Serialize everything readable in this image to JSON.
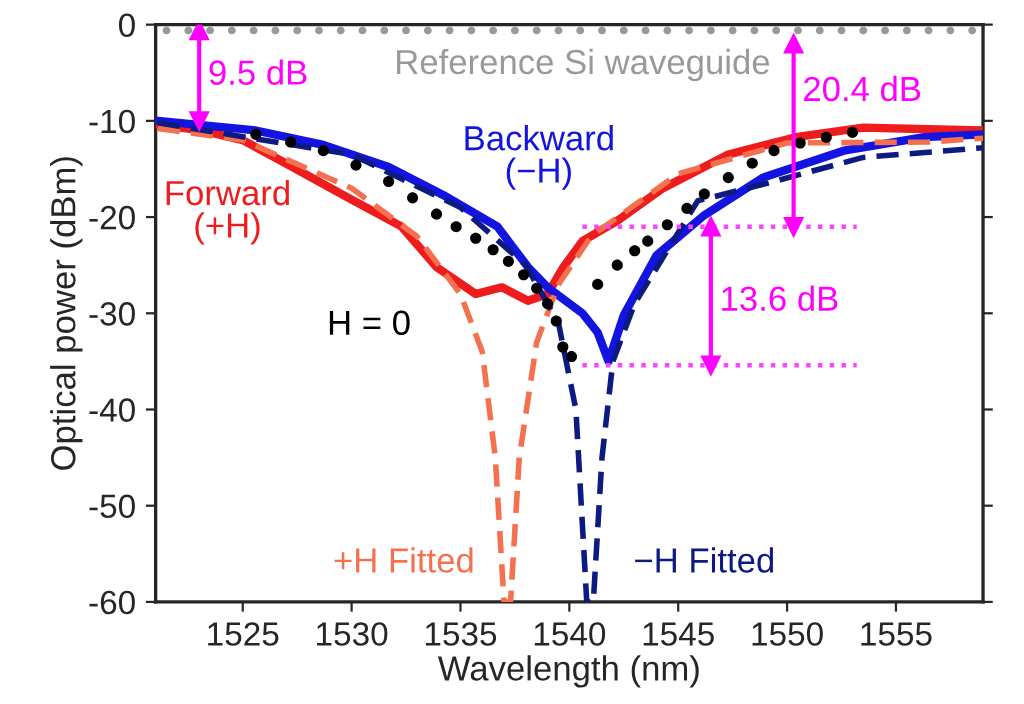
{
  "chart_data": {
    "type": "line",
    "xlabel": "Wavelength (nm)",
    "ylabel": "Optical power (dBm)",
    "xlim": [
      1521,
      1559
    ],
    "xticks": [
      1525,
      1530,
      1535,
      1540,
      1545,
      1550,
      1555
    ],
    "ylim": [
      -60,
      0
    ],
    "yticks": [
      -60,
      -50,
      -40,
      -30,
      -20,
      -10,
      0
    ],
    "grid": false,
    "legend": false,
    "series": [
      {
        "name": "Reference Si waveguide",
        "type": "scatter",
        "marker": "circle",
        "color": "#999999",
        "x": [
          1521.5,
          1522.5,
          1523.5,
          1524.5,
          1525.5,
          1526.5,
          1527.5,
          1528.5,
          1529.5,
          1530.5,
          1531.5,
          1532.5,
          1533.5,
          1534.5,
          1535.5,
          1536.5,
          1537.5,
          1538.5,
          1539.5,
          1540.5,
          1541.5,
          1542.5,
          1543.5,
          1544.5,
          1545.5,
          1546.5,
          1547.5,
          1548.5,
          1549.5,
          1550.5,
          1551.5,
          1552.5,
          1553.5,
          1554.5,
          1555.5,
          1556.5,
          1557.5,
          1558.5
        ],
        "values": [
          -0.6,
          -0.6,
          -0.6,
          -0.6,
          -0.6,
          -0.6,
          -0.6,
          -0.6,
          -0.6,
          -0.6,
          -0.6,
          -0.6,
          -0.6,
          -0.6,
          -0.6,
          -0.6,
          -0.6,
          -0.6,
          -0.6,
          -0.6,
          -0.6,
          -0.6,
          -0.6,
          -0.6,
          -0.6,
          -0.6,
          -0.6,
          -0.6,
          -0.6,
          -0.6,
          -0.6,
          -0.6,
          -0.6,
          -0.6,
          -0.6,
          -0.6,
          -0.6,
          -0.6
        ]
      },
      {
        "name": "Forward\n(+H)",
        "line_style": "solid",
        "color": "#ee1c1c",
        "x": [
          1521.1,
          1523.1,
          1525,
          1526.8,
          1529.6,
          1532.3,
          1533.9,
          1535.7,
          1536.9,
          1538.1,
          1539.0,
          1539.7,
          1540.6,
          1542.2,
          1544.3,
          1547.3,
          1550.4,
          1553.5,
          1559
        ],
        "values": [
          -10.4,
          -11,
          -12,
          -14.2,
          -17.7,
          -21,
          -25.2,
          -28,
          -27.3,
          -28.7,
          -28,
          -25.3,
          -22.5,
          -20.4,
          -17,
          -13.5,
          -11.7,
          -10.7,
          -11
        ]
      },
      {
        "name": "Backward\n(−H)",
        "line_style": "solid",
        "color": "#1414e0",
        "x": [
          1521.1,
          1525.6,
          1528.7,
          1531.7,
          1534.2,
          1536.7,
          1538.1,
          1539.0,
          1540.6,
          1541.3,
          1541.8,
          1542.5,
          1544.0,
          1546.2,
          1548.9,
          1552.6,
          1556.3,
          1559
        ],
        "values": [
          -10,
          -11,
          -12.5,
          -14.8,
          -17.7,
          -21,
          -25.2,
          -27.3,
          -30,
          -32,
          -35,
          -30.2,
          -24,
          -19.8,
          -15.9,
          -13.1,
          -11.7,
          -11.4
        ]
      },
      {
        "name": "H = 0",
        "type": "scatter",
        "marker": "circle",
        "color": "#000000",
        "x": [
          1525.6,
          1527.2,
          1528.7,
          1530.2,
          1531.7,
          1532.8,
          1533.9,
          1534.8,
          1535.7,
          1536.5,
          1537.2,
          1537.9,
          1538.5,
          1539.0,
          1539.4,
          1539.7,
          1540.1,
          1541.3,
          1542.2,
          1543.0,
          1543.6,
          1544.5,
          1545.4,
          1546.2,
          1547.3,
          1548.4,
          1549.4,
          1550.6,
          1551.8,
          1553.0
        ],
        "values": [
          -11.4,
          -12.2,
          -13.1,
          -14.6,
          -16.3,
          -18,
          -19.7,
          -21,
          -22.2,
          -23.4,
          -24.6,
          -26,
          -27.4,
          -29,
          -30.8,
          -33.5,
          -34.5,
          -27,
          -25,
          -23.5,
          -22.5,
          -20.8,
          -19.1,
          -17.6,
          -15.9,
          -14.4,
          -13.1,
          -12.3,
          -11.7,
          -11.2
        ]
      },
      {
        "name": "+H Fitted",
        "line_style": "dashed",
        "color": "#f4704e",
        "x": [
          1521.1,
          1525,
          1530,
          1533,
          1535,
          1536,
          1536.6,
          1537.0,
          1537.3,
          1537.7,
          1538.5,
          1539.5,
          1541,
          1545,
          1550,
          1556.5,
          1559
        ],
        "values": [
          -10.8,
          -12,
          -17,
          -22,
          -28,
          -34,
          -45,
          -60,
          -60,
          -45,
          -33,
          -27,
          -22,
          -15.5,
          -12.3,
          -12.2,
          -11.8
        ]
      },
      {
        "name": "−H Fitted",
        "line_style": "dashed",
        "color": "#0d1a80",
        "x": [
          1521.1,
          1530,
          1535,
          1538,
          1539.5,
          1540.3,
          1540.8,
          1541.1,
          1541.5,
          1542,
          1543,
          1545.9,
          1548.9,
          1553.5,
          1559
        ],
        "values": [
          -10.2,
          -13.5,
          -19,
          -25,
          -31,
          -40,
          -60,
          -60,
          -45,
          -35,
          -29,
          -18.3,
          -16.6,
          -13.8,
          -12.8
        ]
      },
      {
        "type": "line",
        "line_style": "dotted",
        "color": "#ff44ff",
        "x": [
          1540.6,
          1553.2
        ],
        "values": [
          -21,
          -21
        ]
      },
      {
        "type": "line",
        "line_style": "dotted",
        "color": "#ff44ff",
        "x": [
          1540.6,
          1553.2
        ],
        "values": [
          -35.4,
          -35.4
        ]
      },
      {
        "type": "line",
        "line_style": "solid",
        "marker": "triangle",
        "color": "#ff00ff",
        "x": [
          1523,
          1523
        ],
        "values": [
          -0.6,
          -10
        ]
      },
      {
        "type": "line",
        "line_style": "solid",
        "marker": "triangle",
        "color": "#ff00ff",
        "x": [
          1550.3,
          1550.3
        ],
        "values": [
          -2,
          -21
        ]
      },
      {
        "type": "line",
        "line_style": "solid",
        "marker": "triangle",
        "color": "#ff00ff",
        "x": [
          1546.5,
          1546.5
        ],
        "values": [
          -21,
          -35.4
        ]
      }
    ],
    "annotations": [
      {
        "text": "9.5 dB",
        "x": 1523,
        "y": -5.3
      },
      {
        "text": "20.4 dB",
        "x": 1550.3,
        "y": -7
      },
      {
        "text": "13.6 dB",
        "x": 1546.5,
        "y": -28.8
      }
    ]
  }
}
